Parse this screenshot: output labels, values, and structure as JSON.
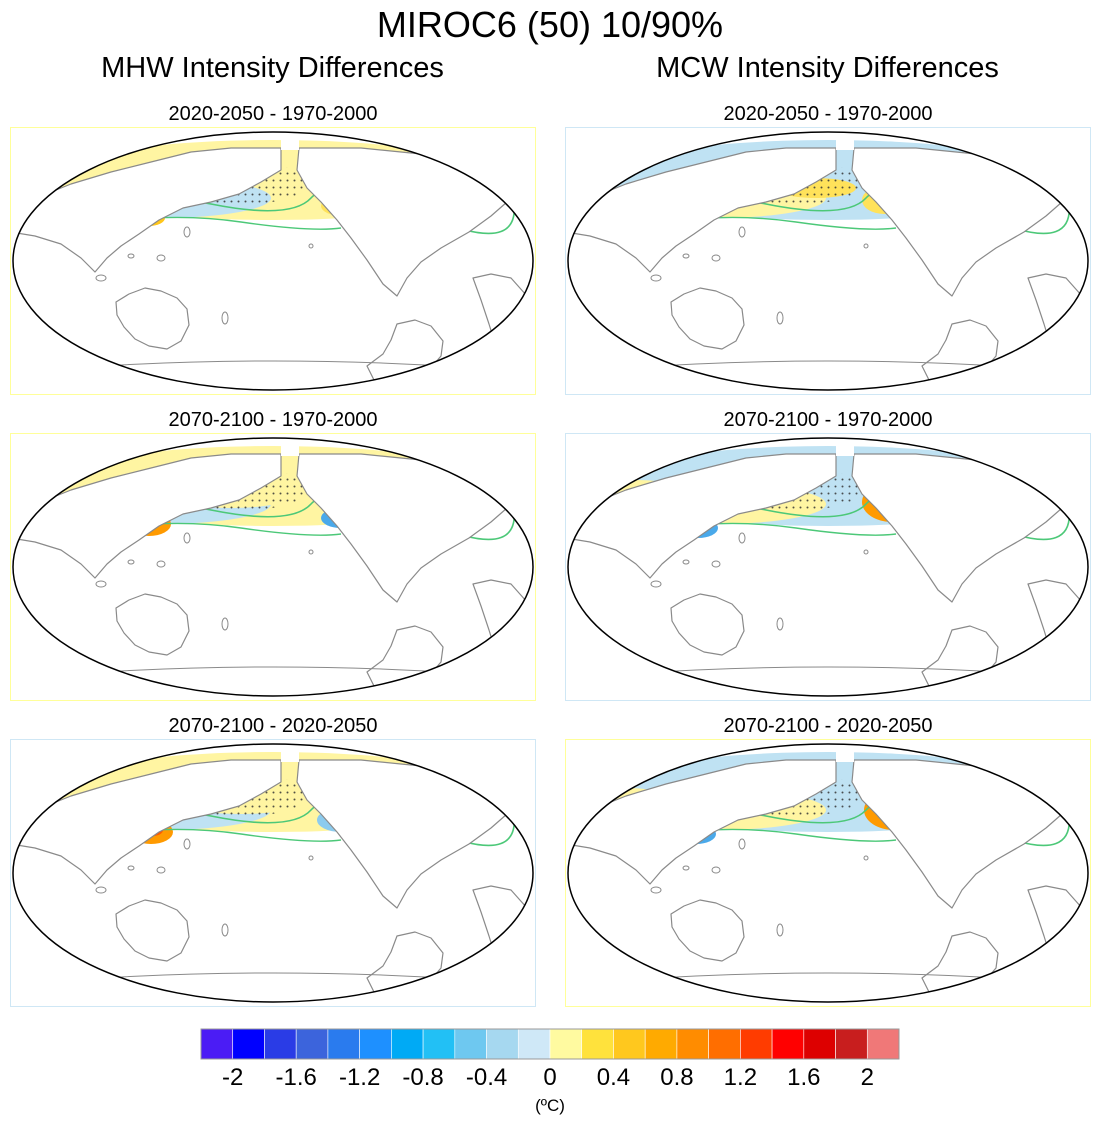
{
  "title": "MIROC6 (50) 10/90%",
  "columns": [
    {
      "title": "MHW Intensity Differences"
    },
    {
      "title": "MCW Intensity Differences"
    }
  ],
  "panels": [
    {
      "title": "2020-2050 - 1970-2000",
      "border_color": "#ffff99",
      "variant": 0
    },
    {
      "title": "2020-2050 - 1970-2000",
      "border_color": "#cfe7f5",
      "variant": 1
    },
    {
      "title": "2070-2100 - 1970-2000",
      "border_color": "#ffff99",
      "variant": 2
    },
    {
      "title": "2070-2100 - 1970-2000",
      "border_color": "#cfe7f5",
      "variant": 3
    },
    {
      "title": "2070-2100 - 2020-2050",
      "border_color": "#cfe7f5",
      "variant": 4
    },
    {
      "title": "2070-2100 - 2020-2050",
      "border_color": "#ffff99",
      "variant": 5
    }
  ],
  "chart_data": {
    "type": "heatmap",
    "title": "MIROC6 (50) 10/90%",
    "projection": "Robinson, Pacific-centred",
    "colorbar": {
      "min": -2.2,
      "max": 2.2,
      "step": 0.2,
      "colors": [
        "#4b1cf5",
        "#0000ff",
        "#2a3ce6",
        "#3c64dc",
        "#2a7bee",
        "#1e90ff",
        "#00aaf5",
        "#22c0f5",
        "#6ec8f0",
        "#a6d8f0",
        "#cfe8f7",
        "#fffaa0",
        "#ffe23c",
        "#ffc81e",
        "#ffaa00",
        "#ff8c00",
        "#ff6e00",
        "#ff3c00",
        "#ff0000",
        "#dd0000",
        "#c81e1e",
        "#f07878"
      ],
      "tick_values": [
        -2,
        -1.6,
        -1.2,
        -0.8,
        -0.4,
        0,
        0.4,
        0.8,
        1.2,
        1.6,
        2
      ],
      "tick_labels": [
        "-2",
        "-1.6",
        "-1.2",
        "-0.8",
        "-0.4",
        "0",
        "0.4",
        "0.8",
        "1.2",
        "1.6",
        "2"
      ],
      "units_label": "(ºC)"
    }
  },
  "colors": {
    "stipple": "#333333",
    "contour": "#4cc878",
    "coast": "#8a8a8a"
  }
}
